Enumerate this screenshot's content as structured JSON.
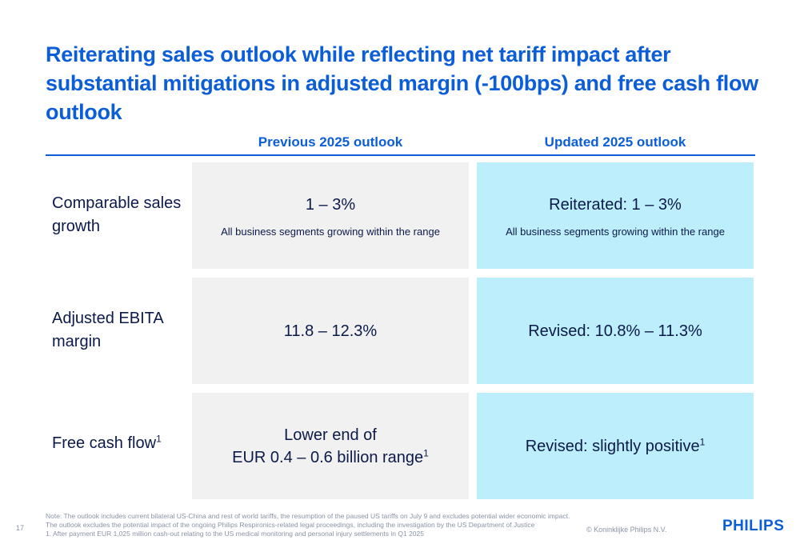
{
  "title": "Reiterating sales outlook while reflecting net tariff impact after substantial mitigations in adjusted margin (-100bps) and free cash flow outlook",
  "columns": {
    "previous": "Previous 2025 outlook",
    "updated": "Updated 2025 outlook"
  },
  "rows": [
    {
      "label": "Comparable sales growth",
      "previous_main": "1 – 3%",
      "previous_sub": "All business segments growing within the range",
      "updated_main": "Reiterated: 1 – 3%",
      "updated_sub": "All business segments growing within the range"
    },
    {
      "label": "Adjusted EBITA margin",
      "previous_main": "11.8 – 12.3%",
      "updated_main": "Revised: 10.8% – 11.3%"
    },
    {
      "label": "Free cash flow",
      "label_sup": "1",
      "previous_main_line1": "Lower end of",
      "previous_main_line2": "EUR 0.4 – 0.6 billion range",
      "previous_sup": "1",
      "updated_main": "Revised: slightly positive",
      "updated_sup": "1"
    }
  ],
  "notes": [
    "Note:  The outlook includes current bilateral US-China and rest of world tariffs, the resumption of the paused US tariffs on July 9 and excludes potential wider economic impact.",
    "The outlook excludes the potential impact of the ongoing Philips Respironics-related legal proceedings, including the investigation by the US Department of Justice",
    "1. After payment EUR 1,025 million cash-out relating to the US medical monitoring and personal injury settlements in Q1 2025"
  ],
  "page_number": "17",
  "copyright": "© Koninklijke Philips N.V.",
  "logo_text": "PHILIPS",
  "colors": {
    "accent": "#0b5ed7",
    "previous_bg": "#f1f1f1",
    "updated_bg": "#bdeefb"
  }
}
